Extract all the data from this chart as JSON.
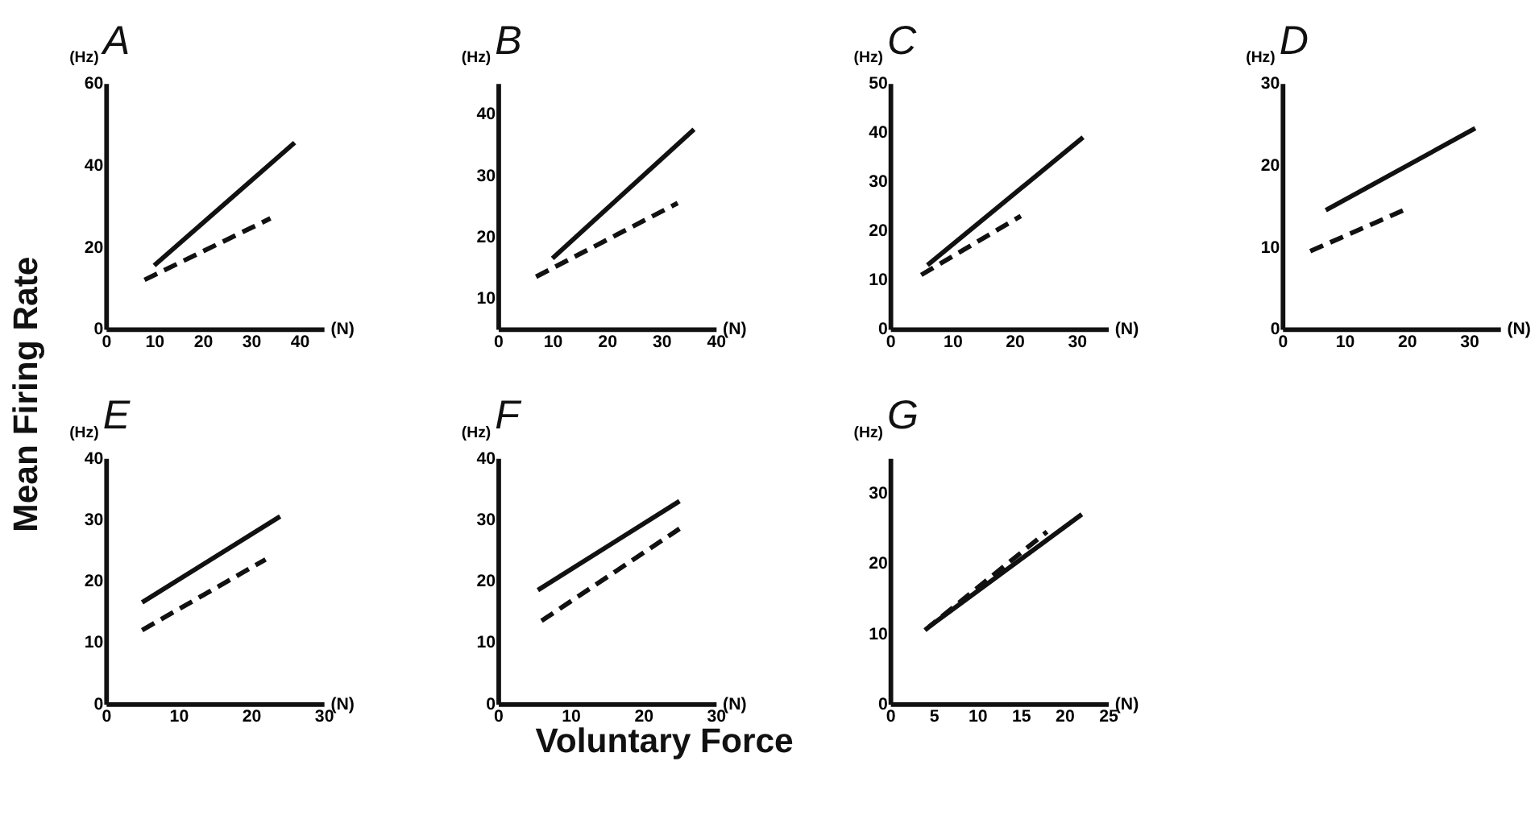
{
  "chart_data": [
    {
      "type": "line",
      "title": "A",
      "xlabel": "(N)",
      "ylabel": "(Hz)",
      "xlim": [
        0,
        45
      ],
      "xticks": [
        0,
        10,
        20,
        30,
        40
      ],
      "ylim": [
        0,
        60
      ],
      "yticks": [
        0,
        20,
        40,
        60
      ],
      "annotations": [
        "Mean Firing Rate",
        "Voluntary Force"
      ],
      "series": [
        {
          "color": "#111111",
          "line_style": "solid",
          "x": [
            10,
            39
          ],
          "values": [
            15.5,
            45.5
          ]
        },
        {
          "color": "#111111",
          "line_style": "dashed",
          "x": [
            8,
            34
          ],
          "values": [
            12,
            27
          ]
        }
      ]
    },
    {
      "type": "line",
      "title": "B",
      "xlabel": "(N)",
      "ylabel": "(Hz)",
      "xlim": [
        0,
        40
      ],
      "xticks": [
        0,
        10,
        20,
        30,
        40
      ],
      "ylim": [
        5,
        45
      ],
      "yticks": [
        10,
        20,
        30,
        40
      ],
      "series": [
        {
          "color": "#111111",
          "line_style": "solid",
          "x": [
            10,
            36
          ],
          "values": [
            16.5,
            37.5
          ]
        },
        {
          "color": "#111111",
          "line_style": "dashed",
          "x": [
            7,
            33
          ],
          "values": [
            13.5,
            25.5
          ]
        }
      ]
    },
    {
      "type": "line",
      "title": "C",
      "xlabel": "(N)",
      "ylabel": "(Hz)",
      "xlim": [
        0,
        35
      ],
      "xticks": [
        0,
        10,
        20,
        30
      ],
      "ylim": [
        0,
        50
      ],
      "yticks": [
        0,
        10,
        20,
        30,
        40,
        50
      ],
      "series": [
        {
          "color": "#111111",
          "line_style": "solid",
          "x": [
            6,
            31
          ],
          "values": [
            13,
            39
          ]
        },
        {
          "color": "#111111",
          "line_style": "dashed",
          "x": [
            5,
            21
          ],
          "values": [
            11,
            23
          ]
        }
      ]
    },
    {
      "type": "line",
      "title": "D",
      "xlabel": "(N)",
      "ylabel": "(Hz)",
      "xlim": [
        0,
        35
      ],
      "xticks": [
        0,
        10,
        20,
        30
      ],
      "ylim": [
        0,
        30
      ],
      "yticks": [
        0,
        10,
        20,
        30
      ],
      "series": [
        {
          "color": "#111111",
          "line_style": "solid",
          "x": [
            7,
            31
          ],
          "values": [
            14.5,
            24.5
          ]
        },
        {
          "color": "#111111",
          "line_style": "dashed",
          "x": [
            4.5,
            19.5
          ],
          "values": [
            9.5,
            14.5
          ]
        }
      ]
    },
    {
      "type": "line",
      "title": "E",
      "xlabel": "(N)",
      "ylabel": "(Hz)",
      "xlim": [
        0,
        30
      ],
      "xticks": [
        0,
        10,
        20,
        30
      ],
      "ylim": [
        0,
        40
      ],
      "yticks": [
        0,
        10,
        20,
        30,
        40
      ],
      "series": [
        {
          "color": "#111111",
          "line_style": "solid",
          "x": [
            5,
            24
          ],
          "values": [
            16.5,
            30.5
          ]
        },
        {
          "color": "#111111",
          "line_style": "dashed",
          "x": [
            5,
            22
          ],
          "values": [
            12,
            23.5
          ]
        }
      ]
    },
    {
      "type": "line",
      "title": "F",
      "xlabel": "(N)",
      "ylabel": "(Hz)",
      "xlim": [
        0,
        30
      ],
      "xticks": [
        0,
        10,
        20,
        30
      ],
      "ylim": [
        0,
        40
      ],
      "yticks": [
        0,
        10,
        20,
        30,
        40
      ],
      "series": [
        {
          "color": "#111111",
          "line_style": "solid",
          "x": [
            5.5,
            25
          ],
          "values": [
            18.5,
            33
          ]
        },
        {
          "color": "#111111",
          "line_style": "dashed",
          "x": [
            6,
            25
          ],
          "values": [
            13.5,
            28.5
          ]
        }
      ]
    },
    {
      "type": "line",
      "title": "G",
      "xlabel": "(N)",
      "ylabel": "(Hz)",
      "xlim": [
        0,
        25
      ],
      "xticks": [
        0,
        5,
        10,
        15,
        20,
        25
      ],
      "ylim": [
        0,
        35
      ],
      "yticks": [
        0,
        10,
        20,
        30
      ],
      "series": [
        {
          "color": "#111111",
          "line_style": "solid",
          "x": [
            4.5,
            22
          ],
          "values": [
            11,
            27
          ]
        },
        {
          "color": "#111111",
          "line_style": "dashed",
          "x": [
            4,
            18
          ],
          "values": [
            10.5,
            24.5
          ]
        }
      ]
    }
  ]
}
